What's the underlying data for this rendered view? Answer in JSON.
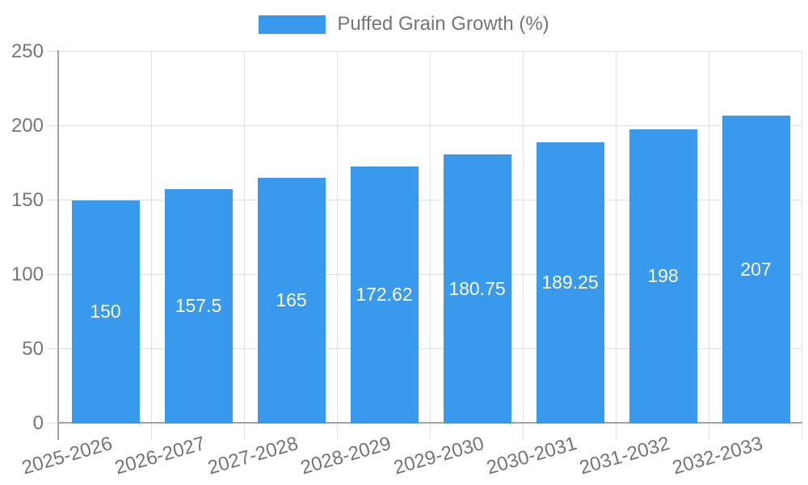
{
  "legend": {
    "label": "Puffed Grain Growth (%)"
  },
  "chart_data": {
    "type": "bar",
    "title": "",
    "categories": [
      "2025-2026",
      "2026-2027",
      "2027-2028",
      "2028-2029",
      "2029-2030",
      "2030-2031",
      "2031-2032",
      "2032-2033"
    ],
    "series": [
      {
        "name": "Puffed Grain Growth (%)",
        "values": [
          150,
          157.5,
          165,
          172.62,
          180.75,
          189.25,
          198,
          207
        ]
      }
    ],
    "value_labels": [
      "150",
      "157.5",
      "165",
      "172.62",
      "180.75",
      "189.25",
      "198",
      "207"
    ],
    "xlabel": "",
    "ylabel": "",
    "ylim": [
      0,
      250
    ],
    "y_ticks": [
      0,
      50,
      100,
      150,
      200,
      250
    ],
    "grid": true,
    "legend_position": "top",
    "x_label_rotation_deg": -16
  },
  "colors": {
    "bar": "#3999EC",
    "axis_line": "#A3A3A3",
    "gridline": "#E0E0E0",
    "tick_text": "#757575",
    "value_label_text": "#FFFFFF",
    "background": "#FFFFFF"
  }
}
